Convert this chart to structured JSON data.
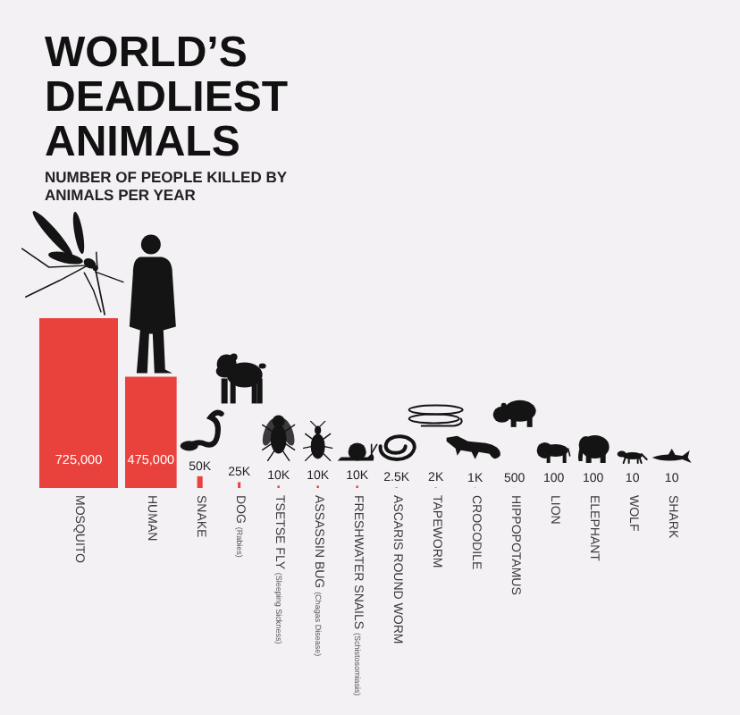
{
  "chart_data": {
    "type": "bar",
    "title": "WORLD’S DEADLIEST ANIMALS",
    "subtitle": "NUMBER OF PEOPLE KILLED BY ANIMALS PER YEAR",
    "categories": [
      "MOSQUITO",
      "HUMAN",
      "SNAKE",
      "DOG (Rabies)",
      "TSETSE FLY (Sleeping Sickness)",
      "ASSASSIN BUG (Chagas Disease)",
      "FRESHWATER SNAILS (Schistosomiasis)",
      "ASCARIS ROUND WORM",
      "TAPEWORM",
      "CROCODILE",
      "HIPPOPOTAMUS",
      "LION",
      "ELEPHANT",
      "WOLF",
      "SHARK"
    ],
    "values": [
      725000,
      475000,
      50000,
      25000,
      10000,
      10000,
      10000,
      2500,
      2000,
      1000,
      500,
      100,
      100,
      10,
      10
    ],
    "value_labels": [
      "725,000",
      "475,000",
      "50K",
      "25K",
      "10K",
      "10K",
      "10K",
      "2.5K",
      "2K",
      "1K",
      "500",
      "100",
      "100",
      "10",
      "10"
    ],
    "color": "#e9413c"
  }
}
